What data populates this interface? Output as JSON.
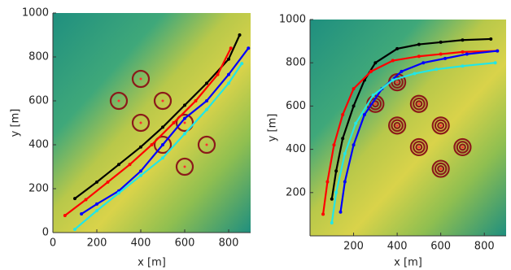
{
  "chart_data": [
    {
      "type": "line",
      "xlabel": "x [m]",
      "ylabel": "y [m]",
      "xlim": [
        0,
        900
      ],
      "ylim": [
        0,
        1000
      ],
      "xticks": [
        0,
        200,
        400,
        600,
        800
      ],
      "yticks": [
        0,
        200,
        400,
        600,
        800,
        1000
      ],
      "targets": {
        "x": [
          400,
          300,
          500,
          400,
          600,
          500,
          700,
          600
        ],
        "y": [
          700,
          600,
          600,
          500,
          500,
          400,
          400,
          300
        ],
        "color": "#8b1a1a"
      },
      "series": [
        {
          "color": "#000000",
          "x": [
            100,
            200,
            300,
            400,
            500,
            600,
            700,
            800,
            850
          ],
          "values": [
            155,
            230,
            310,
            390,
            480,
            580,
            680,
            790,
            900
          ]
        },
        {
          "color": "#ff0000",
          "x": [
            55,
            150,
            250,
            350,
            450,
            550,
            650,
            750,
            810
          ],
          "values": [
            78,
            150,
            230,
            310,
            400,
            500,
            600,
            720,
            840
          ]
        },
        {
          "color": "#0000ff",
          "x": [
            130,
            200,
            300,
            400,
            500,
            600,
            700,
            800,
            890
          ],
          "values": [
            85,
            130,
            190,
            280,
            400,
            520,
            600,
            720,
            840
          ]
        },
        {
          "color": "#22e6e6",
          "x": [
            100,
            200,
            300,
            400,
            500,
            600,
            700,
            800,
            860
          ],
          "values": [
            15,
            100,
            180,
            260,
            340,
            450,
            560,
            680,
            770
          ]
        }
      ]
    },
    {
      "type": "line",
      "xlabel": "x [m]",
      "ylabel": "y [m]",
      "xlim": [
        0,
        900
      ],
      "ylim": [
        0,
        1000
      ],
      "xticks": [
        200,
        400,
        600,
        800
      ],
      "yticks": [
        200,
        400,
        600,
        800,
        1000
      ],
      "targets": {
        "x": [
          400,
          300,
          500,
          400,
          600,
          500,
          700,
          600
        ],
        "y": [
          710,
          610,
          610,
          510,
          510,
          410,
          410,
          310
        ],
        "color": "#8b1a1a"
      },
      "series": [
        {
          "color": "#000000",
          "x": [
            100,
            120,
            150,
            200,
            250,
            300,
            400,
            500,
            600,
            700,
            830
          ],
          "values": [
            170,
            300,
            450,
            600,
            720,
            800,
            865,
            885,
            895,
            905,
            910
          ]
        },
        {
          "color": "#ff0000",
          "x": [
            60,
            80,
            110,
            150,
            200,
            280,
            380,
            500,
            600,
            700,
            860
          ],
          "values": [
            100,
            250,
            420,
            560,
            680,
            760,
            810,
            830,
            840,
            850,
            855
          ]
        },
        {
          "color": "#0000ff",
          "x": [
            140,
            160,
            200,
            250,
            330,
            420,
            520,
            620,
            720,
            860
          ],
          "values": [
            110,
            250,
            420,
            560,
            680,
            760,
            800,
            820,
            840,
            855
          ]
        },
        {
          "color": "#22e6e6",
          "x": [
            100,
            120,
            160,
            210,
            290,
            380,
            480,
            580,
            700,
            850
          ],
          "values": [
            60,
            200,
            380,
            520,
            650,
            720,
            750,
            770,
            785,
            800
          ]
        }
      ]
    }
  ]
}
